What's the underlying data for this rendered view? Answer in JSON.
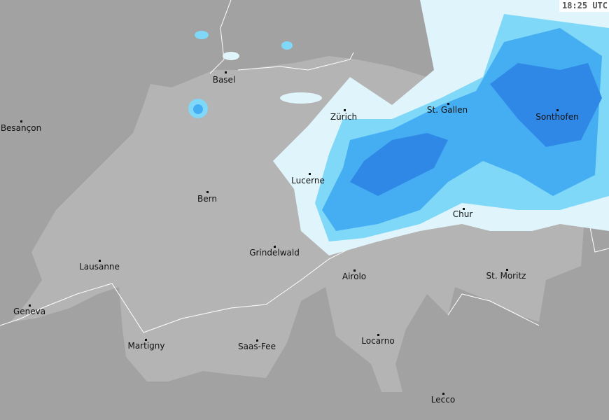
{
  "timestamp": "18:25 UTC",
  "colors": {
    "outside": "#a2a2a2",
    "switzerland": "#b4b4b4",
    "border": "#ffffff",
    "precip_light": "#dff4fb",
    "precip_cyan": "#7fd8f7",
    "precip_mid": "#45aef2",
    "precip_heavy": "#2f88e6"
  },
  "cities": [
    {
      "name": "Basel"
    },
    {
      "name": "Besançon"
    },
    {
      "name": "Zürich"
    },
    {
      "name": "St. Gallen"
    },
    {
      "name": "Sonthofen"
    },
    {
      "name": "Lucerne"
    },
    {
      "name": "Bern"
    },
    {
      "name": "Chur"
    },
    {
      "name": "Grindelwald"
    },
    {
      "name": "Lausanne"
    },
    {
      "name": "Airolo"
    },
    {
      "name": "St. Moritz"
    },
    {
      "name": "Geneva"
    },
    {
      "name": "Martigny"
    },
    {
      "name": "Saas-Fee"
    },
    {
      "name": "Locarno"
    },
    {
      "name": "Lecco"
    }
  ]
}
